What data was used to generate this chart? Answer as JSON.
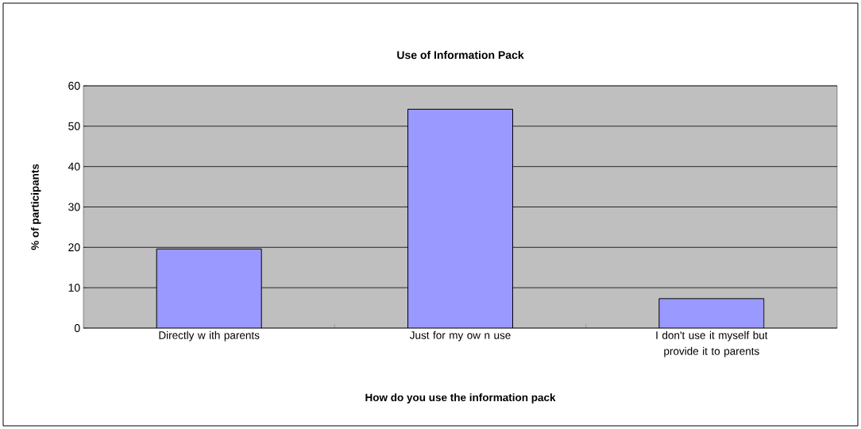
{
  "chart_data": {
    "type": "bar",
    "title": "Use of Information Pack",
    "xlabel": "How do you use the information pack",
    "ylabel": "% of participants",
    "categories": [
      "Directly w ith parents",
      "Just for my ow n use",
      "I don't use it myself but provide it to parents"
    ],
    "values": [
      19.6,
      54.2,
      7.3
    ],
    "color": "#9999ff",
    "ylim": [
      0,
      60
    ],
    "yticks": [
      0,
      10,
      20,
      30,
      40,
      50,
      60
    ],
    "grid": "y"
  }
}
